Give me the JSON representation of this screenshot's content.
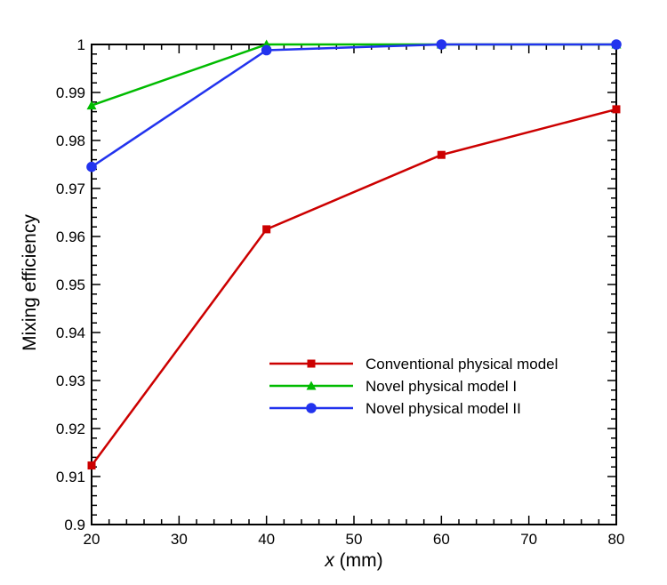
{
  "chart_data": {
    "type": "line",
    "title": "",
    "xlabel_var": "x",
    "xlabel_unit": " (mm)",
    "ylabel": "Mixing efficiency",
    "xlim": [
      20,
      80
    ],
    "ylim": [
      0.9,
      1.0
    ],
    "x_ticks": [
      "20",
      "30",
      "40",
      "50",
      "60",
      "70",
      "80"
    ],
    "y_ticks": [
      "0.9",
      "0.91",
      "0.92",
      "0.93",
      "0.94",
      "0.95",
      "0.96",
      "0.97",
      "0.98",
      "0.99",
      "1"
    ],
    "grid": false,
    "legend_position": "lower-right",
    "series": [
      {
        "name": "Conventional physical model",
        "color": "#cc0000",
        "marker": "square",
        "x": [
          20,
          40,
          60,
          80
        ],
        "y": [
          0.9123,
          0.9615,
          0.977,
          0.9865
        ]
      },
      {
        "name": "Novel physical model I",
        "color": "#00bb00",
        "marker": "triangle",
        "x": [
          20,
          40,
          60,
          80
        ],
        "y": [
          0.9873,
          1.0,
          1.0,
          1.0
        ]
      },
      {
        "name": "Novel physical model II",
        "color": "#2233ee",
        "marker": "circle",
        "x": [
          20,
          40,
          60,
          80
        ],
        "y": [
          0.9745,
          0.9988,
          1.0,
          1.0
        ]
      }
    ]
  }
}
